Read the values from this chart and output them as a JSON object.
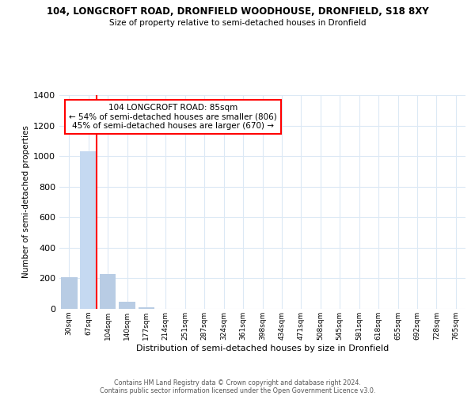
{
  "title1": "104, LONGCROFT ROAD, DRONFIELD WOODHOUSE, DRONFIELD, S18 8XY",
  "title2": "Size of property relative to semi-detached houses in Dronfield",
  "xlabel": "Distribution of semi-detached houses by size in Dronfield",
  "ylabel": "Number of semi-detached properties",
  "bin_labels": [
    "30sqm",
    "67sqm",
    "104sqm",
    "140sqm",
    "177sqm",
    "214sqm",
    "251sqm",
    "287sqm",
    "324sqm",
    "361sqm",
    "398sqm",
    "434sqm",
    "471sqm",
    "508sqm",
    "545sqm",
    "581sqm",
    "618sqm",
    "655sqm",
    "692sqm",
    "728sqm",
    "765sqm"
  ],
  "bar_values": [
    210,
    1030,
    230,
    45,
    10,
    0,
    0,
    0,
    0,
    0,
    0,
    0,
    0,
    0,
    0,
    0,
    0,
    0,
    0,
    0,
    0
  ],
  "highlight_bar_index": 1,
  "highlight_color": "#c5d9f1",
  "normal_color": "#b8cce4",
  "property_line_index": 1,
  "property_line_color": "#ff0000",
  "ylim": [
    0,
    1400
  ],
  "yticks": [
    0,
    200,
    400,
    600,
    800,
    1000,
    1200,
    1400
  ],
  "annotation_title": "104 LONGCROFT ROAD: 85sqm",
  "annotation_line1": "← 54% of semi-detached houses are smaller (806)",
  "annotation_line2": "45% of semi-detached houses are larger (670) →",
  "annotation_box_color": "#ffffff",
  "annotation_border_color": "#ff0000",
  "footer1": "Contains HM Land Registry data © Crown copyright and database right 2024.",
  "footer2": "Contains public sector information licensed under the Open Government Licence v3.0.",
  "background_color": "#ffffff",
  "grid_color": "#dce9f5"
}
